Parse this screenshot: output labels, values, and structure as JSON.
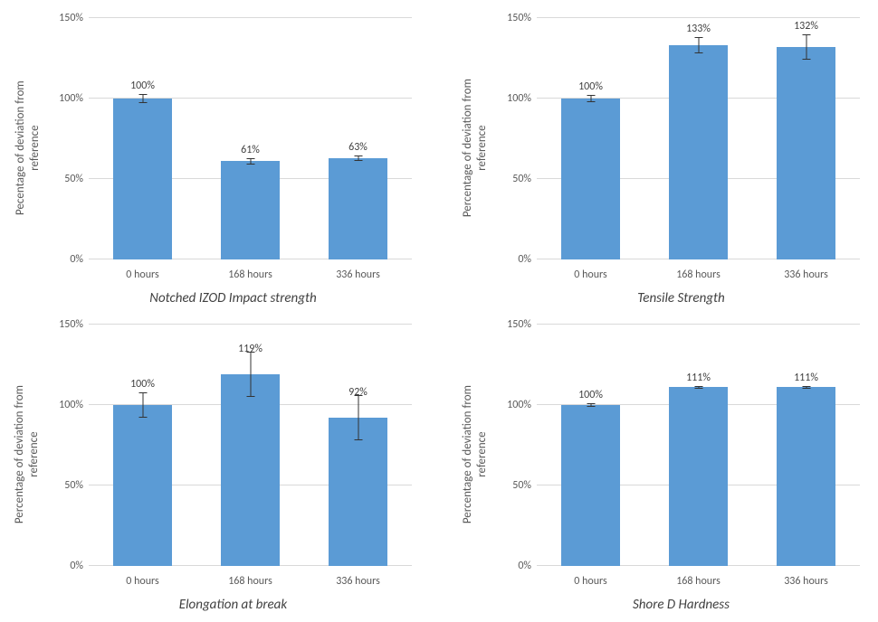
{
  "global": {
    "bar_color": "#5b9bd5",
    "grid_color": "#d9d9d9",
    "text_color": "#595959",
    "background": "#ffffff",
    "font_family": "Calibri",
    "tick_fontsize": 12,
    "label_fontsize": 13,
    "caption_fontsize": 15
  },
  "panels": [
    {
      "id": "izod",
      "type": "bar",
      "caption": "Notched IZOD Impact strength",
      "ylabel": "Pecentage of deviation from reference",
      "ylim": [
        0,
        150
      ],
      "ytick_step": 50,
      "bar_width_pct": 55,
      "categories": [
        "0 hours",
        "168 hours",
        "336 hours"
      ],
      "values": [
        100,
        61,
        63
      ],
      "value_labels": [
        "100%",
        "61%",
        "63%"
      ],
      "errors": [
        3,
        2,
        1.5
      ],
      "label_offsets": [
        14,
        14,
        14
      ]
    },
    {
      "id": "tensile",
      "type": "bar",
      "caption": "Tensile Strength",
      "ylabel": "Percentage of deviation from reference",
      "ylim": [
        0,
        150
      ],
      "ytick_step": 50,
      "bar_width_pct": 55,
      "categories": [
        "0 hours",
        "168 hours",
        "336 hours"
      ],
      "values": [
        100,
        133,
        132
      ],
      "value_labels": [
        "100%",
        "133%",
        "132%"
      ],
      "errors": [
        2,
        5,
        8
      ],
      "label_offsets": [
        14,
        14,
        14
      ]
    },
    {
      "id": "elongation",
      "type": "bar",
      "caption": "Elongation at break",
      "ylabel": "Percentage of deviation from reference",
      "ylim": [
        0,
        150
      ],
      "ytick_step": 50,
      "bar_width_pct": 55,
      "categories": [
        "0 hours",
        "168 hours",
        "336 hours"
      ],
      "values": [
        100,
        119,
        92
      ],
      "value_labels": [
        "100%",
        "119%",
        "92%"
      ],
      "errors": [
        8,
        14,
        14
      ],
      "label_offsets": [
        14,
        8,
        8
      ]
    },
    {
      "id": "shore",
      "type": "bar",
      "caption": "Shore D Hardness",
      "ylabel": "Percentage of deviation from reference",
      "ylim": [
        0,
        150
      ],
      "ytick_step": 50,
      "bar_width_pct": 55,
      "categories": [
        "0 hours",
        "168 hours",
        "336 hours"
      ],
      "values": [
        100,
        111,
        111
      ],
      "value_labels": [
        "100%",
        "111%",
        "111%"
      ],
      "errors": [
        1,
        1,
        1
      ],
      "label_offsets": [
        14,
        14,
        14
      ]
    }
  ]
}
